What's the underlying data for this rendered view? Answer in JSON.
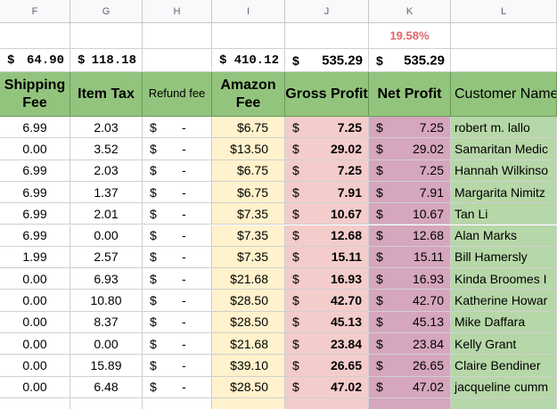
{
  "columns": [
    "F",
    "G",
    "H",
    "I",
    "J",
    "K",
    "L"
  ],
  "net_margin": "19.58%",
  "currency": "$",
  "totals": {
    "F": "64.90",
    "G": "118.18",
    "I": "410.12",
    "J": "535.29",
    "K": "535.29"
  },
  "headers": [
    "Shipping Fee",
    "Item Tax",
    "Refund fee",
    "Amazon Fee",
    "Gross Profit",
    "Net Profit",
    "Customer Name"
  ],
  "rows": [
    {
      "shipping_fee": "6.99",
      "item_tax": "2.03",
      "refund_fee": "-",
      "amazon_fee": "$6.75",
      "gross_profit": "7.25",
      "net_profit": "7.25",
      "customer": "robert m. lallo"
    },
    {
      "shipping_fee": "0.00",
      "item_tax": "3.52",
      "refund_fee": "-",
      "amazon_fee": "$13.50",
      "gross_profit": "29.02",
      "net_profit": "29.02",
      "customer": "Samaritan Medic"
    },
    {
      "shipping_fee": "6.99",
      "item_tax": "2.03",
      "refund_fee": "-",
      "amazon_fee": "$6.75",
      "gross_profit": "7.25",
      "net_profit": "7.25",
      "customer": "Hannah Wilkinso"
    },
    {
      "shipping_fee": "6.99",
      "item_tax": "1.37",
      "refund_fee": "-",
      "amazon_fee": "$6.75",
      "gross_profit": "7.91",
      "net_profit": "7.91",
      "customer": "Margarita Nimitz"
    },
    {
      "shipping_fee": "6.99",
      "item_tax": "2.01",
      "refund_fee": "-",
      "amazon_fee": "$7.35",
      "gross_profit": "10.67",
      "net_profit": "10.67",
      "customer": "Tan Li"
    },
    {
      "shipping_fee": "6.99",
      "item_tax": "0.00",
      "refund_fee": "-",
      "amazon_fee": "$7.35",
      "gross_profit": "12.68",
      "net_profit": "12.68",
      "customer": "Alan Marks"
    },
    {
      "shipping_fee": "1.99",
      "item_tax": "2.57",
      "refund_fee": "-",
      "amazon_fee": "$7.35",
      "gross_profit": "15.11",
      "net_profit": "15.11",
      "customer": "Bill Hamersly"
    },
    {
      "shipping_fee": "0.00",
      "item_tax": "6.93",
      "refund_fee": "-",
      "amazon_fee": "$21.68",
      "gross_profit": "16.93",
      "net_profit": "16.93",
      "customer": "Kinda Broomes I"
    },
    {
      "shipping_fee": "0.00",
      "item_tax": "10.80",
      "refund_fee": "-",
      "amazon_fee": "$28.50",
      "gross_profit": "42.70",
      "net_profit": "42.70",
      "customer": "Katherine Howar"
    },
    {
      "shipping_fee": "0.00",
      "item_tax": "8.37",
      "refund_fee": "-",
      "amazon_fee": "$28.50",
      "gross_profit": "45.13",
      "net_profit": "45.13",
      "customer": "Mike Daffara"
    },
    {
      "shipping_fee": "0.00",
      "item_tax": "0.00",
      "refund_fee": "-",
      "amazon_fee": "$21.68",
      "gross_profit": "23.84",
      "net_profit": "23.84",
      "customer": "Kelly Grant"
    },
    {
      "shipping_fee": "0.00",
      "item_tax": "15.89",
      "refund_fee": "-",
      "amazon_fee": "$39.10",
      "gross_profit": "26.65",
      "net_profit": "26.65",
      "customer": "Claire Bendiner"
    },
    {
      "shipping_fee": "0.00",
      "item_tax": "6.48",
      "refund_fee": "-",
      "amazon_fee": "$28.50",
      "gross_profit": "47.02",
      "net_profit": "47.02",
      "customer": "jacqueline cumm"
    }
  ]
}
